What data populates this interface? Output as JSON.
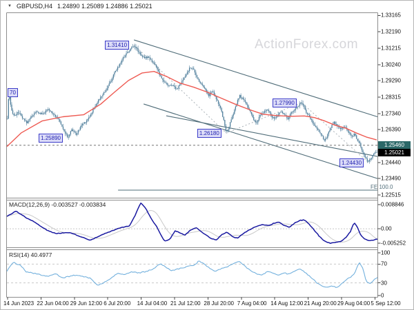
{
  "window": {
    "dropdown_icon": "▼",
    "symbol_period": "GBPUSD,H4",
    "ohlc": "1.24890 1.25089 1.24886 1.25021",
    "watermark": "ActionForex.com"
  },
  "colors": {
    "candle": "#4f7e9b",
    "ma_line": "#ee5a52",
    "trendline": "#4e6b77",
    "swing_dash": "#aab2b8",
    "level_dash": "#707070",
    "macd_line": "#1818a0",
    "signal_line": "#c8c8c8",
    "rsi_line": "#72b0dd",
    "rsi_level_dash": "#c8c8c8",
    "panel_border": "#8c8c8c",
    "level_badge_bg": "#2b6868",
    "last_badge_bg": "#000000",
    "flag_text": "#2222b0",
    "watermark": "#d6d6da"
  },
  "x_axis": {
    "labels": [
      "14 Jun 2023",
      "22 Jun 04:00",
      "29 Jun 12:00",
      "6 Jul 20:00",
      "14 Jul 04:00",
      "21 Jul 12:00",
      "28 Jul 20:00",
      "7 Aug 04:00",
      "14 Aug 12:00",
      "21 Aug 20:00",
      "29 Aug 04:00",
      "5 Sep 12:00"
    ]
  },
  "chart_data": [
    {
      "type": "candlestick",
      "title": "GBPUSD H4 price",
      "bars": 346,
      "y_axis": {
        "range": [
          1.2235,
          1.333
        ],
        "ticks": [
          "1.33165",
          "1.32190",
          "1.31215",
          "1.30240",
          "1.29290",
          "1.28315",
          "1.27340",
          "1.26390",
          "1.24440",
          "1.23490",
          "1.22515"
        ]
      },
      "levels": [
        {
          "label": "1.25460",
          "price": 1.2546,
          "style": "dashed_level"
        },
        {
          "label": "1.25021",
          "price": 1.25021,
          "style": "last_price"
        }
      ],
      "price_labels": [
        {
          "label": "1.31410",
          "f": 0.343,
          "price": 1.3141
        },
        {
          "label": "1.25890",
          "f": 0.164,
          "price": 1.2589
        },
        {
          "label": "1.26180",
          "f": 0.592,
          "price": 1.2618
        },
        {
          "label": "1.27990",
          "f": 0.795,
          "price": 1.2799
        },
        {
          "label": "1.24430",
          "f": 0.976,
          "price": 1.2443
        },
        {
          "label": "70",
          "f": 0.0,
          "price": 1.2861,
          "edge": true
        }
      ],
      "trendlines": [
        {
          "x": [
            0.343,
            1.0
          ],
          "p": [
            1.3171,
            1.2715
          ]
        },
        {
          "x": [
            0.369,
            1.0
          ],
          "p": [
            1.2791,
            1.2349
          ]
        },
        {
          "x": [
            0.43,
            1.0
          ],
          "p": [
            1.2721,
            1.248
          ]
        }
      ],
      "swing_dash_path": [
        [
          0.343,
          1.3141
        ],
        [
          0.592,
          1.2618
        ],
        [
          0.795,
          1.2799
        ],
        [
          0.976,
          1.2443
        ]
      ],
      "fib_expansion": {
        "label": "FE 100.0",
        "price": 1.228,
        "x_start": 0.3
      },
      "close_path": [
        [
          0,
          1.265
        ],
        [
          0.006,
          1.288
        ],
        [
          0.011,
          1.276
        ],
        [
          0.02,
          1.272
        ],
        [
          0.032,
          1.2745
        ],
        [
          0.043,
          1.27
        ],
        [
          0.054,
          1.268
        ],
        [
          0.067,
          1.272
        ],
        [
          0.08,
          1.2745
        ],
        [
          0.095,
          1.273
        ],
        [
          0.11,
          1.2758
        ],
        [
          0.125,
          1.2735
        ],
        [
          0.14,
          1.27
        ],
        [
          0.151,
          1.265
        ],
        [
          0.164,
          1.2589
        ],
        [
          0.175,
          1.264
        ],
        [
          0.188,
          1.261
        ],
        [
          0.201,
          1.2665
        ],
        [
          0.214,
          1.269
        ],
        [
          0.227,
          1.273
        ],
        [
          0.24,
          1.279
        ],
        [
          0.253,
          1.283
        ],
        [
          0.266,
          1.287
        ],
        [
          0.279,
          1.292
        ],
        [
          0.292,
          1.298
        ],
        [
          0.305,
          1.303
        ],
        [
          0.318,
          1.308
        ],
        [
          0.331,
          1.311
        ],
        [
          0.343,
          1.3141
        ],
        [
          0.35,
          1.312
        ],
        [
          0.359,
          1.309
        ],
        [
          0.371,
          1.306
        ],
        [
          0.382,
          1.3075
        ],
        [
          0.393,
          1.304
        ],
        [
          0.404,
          1.301
        ],
        [
          0.413,
          1.2955
        ],
        [
          0.425,
          1.292
        ],
        [
          0.436,
          1.29
        ],
        [
          0.447,
          1.2905
        ],
        [
          0.458,
          1.288
        ],
        [
          0.469,
          1.291
        ],
        [
          0.48,
          1.295
        ],
        [
          0.492,
          1.3
        ],
        [
          0.501,
          1.3008
        ],
        [
          0.51,
          1.296
        ],
        [
          0.521,
          1.292
        ],
        [
          0.533,
          1.289
        ],
        [
          0.544,
          1.284
        ],
        [
          0.555,
          1.287
        ],
        [
          0.566,
          1.282
        ],
        [
          0.577,
          1.276
        ],
        [
          0.587,
          1.268
        ],
        [
          0.592,
          1.2618
        ],
        [
          0.6,
          1.266
        ],
        [
          0.609,
          1.272
        ],
        [
          0.618,
          1.278
        ],
        [
          0.628,
          1.284
        ],
        [
          0.637,
          1.282
        ],
        [
          0.646,
          1.279
        ],
        [
          0.656,
          1.275
        ],
        [
          0.665,
          1.27
        ],
        [
          0.674,
          1.268
        ],
        [
          0.683,
          1.272
        ],
        [
          0.693,
          1.274
        ],
        [
          0.702,
          1.276
        ],
        [
          0.711,
          1.273
        ],
        [
          0.721,
          1.27
        ],
        [
          0.73,
          1.272
        ],
        [
          0.739,
          1.275
        ],
        [
          0.749,
          1.273
        ],
        [
          0.758,
          1.27
        ],
        [
          0.767,
          1.274
        ],
        [
          0.777,
          1.276
        ],
        [
          0.786,
          1.278
        ],
        [
          0.795,
          1.2799
        ],
        [
          0.804,
          1.276
        ],
        [
          0.814,
          1.272
        ],
        [
          0.823,
          1.269
        ],
        [
          0.832,
          1.266
        ],
        [
          0.842,
          1.263
        ],
        [
          0.851,
          1.26
        ],
        [
          0.858,
          1.257
        ],
        [
          0.866,
          1.261
        ],
        [
          0.873,
          1.265
        ],
        [
          0.883,
          1.268
        ],
        [
          0.892,
          1.266
        ],
        [
          0.901,
          1.264
        ],
        [
          0.911,
          1.266
        ],
        [
          0.92,
          1.263
        ],
        [
          0.929,
          1.26
        ],
        [
          0.938,
          1.261
        ],
        [
          0.946,
          1.258
        ],
        [
          0.953,
          1.255
        ],
        [
          0.961,
          1.25
        ],
        [
          0.968,
          1.247
        ],
        [
          0.976,
          1.2443
        ],
        [
          0.983,
          1.247
        ],
        [
          0.991,
          1.25
        ],
        [
          0.998,
          1.2502
        ]
      ],
      "ma_line": [
        [
          0,
          1.2538
        ],
        [
          0.039,
          1.262
        ],
        [
          0.095,
          1.269
        ],
        [
          0.151,
          1.2715
        ],
        [
          0.207,
          1.2727
        ],
        [
          0.253,
          1.279
        ],
        [
          0.29,
          1.286
        ],
        [
          0.328,
          1.293
        ],
        [
          0.365,
          1.2975
        ],
        [
          0.397,
          1.2984
        ],
        [
          0.43,
          1.2955
        ],
        [
          0.467,
          1.2915
        ],
        [
          0.505,
          1.289
        ],
        [
          0.542,
          1.286
        ],
        [
          0.579,
          1.2825
        ],
        [
          0.616,
          1.279
        ],
        [
          0.654,
          1.2758
        ],
        [
          0.691,
          1.273
        ],
        [
          0.728,
          1.2722
        ],
        [
          0.765,
          1.2718
        ],
        [
          0.803,
          1.272
        ],
        [
          0.83,
          1.271
        ],
        [
          0.858,
          1.269
        ],
        [
          0.886,
          1.2665
        ],
        [
          0.914,
          1.2648
        ],
        [
          0.942,
          1.262
        ],
        [
          0.97,
          1.2595
        ],
        [
          0.998,
          1.2578
        ]
      ]
    },
    {
      "type": "line",
      "title": "MACD",
      "label": "MACD(12,26,9) -0.003527 -0.003834",
      "y_axis": {
        "range": [
          -0.0062,
          0.0095
        ],
        "ticks": [
          "0.008846",
          "0.00",
          "-0.005252"
        ],
        "tick_values": [
          0.008846,
          0,
          -0.005252
        ]
      },
      "zero_line": 0,
      "points": [
        [
          0,
          0.0041
        ],
        [
          0.024,
          0.006
        ],
        [
          0.048,
          0.004
        ],
        [
          0.076,
          0.0022
        ],
        [
          0.108,
          -0.0005
        ],
        [
          0.132,
          -0.0016
        ],
        [
          0.169,
          -0.0012
        ],
        [
          0.188,
          -0.0021
        ],
        [
          0.225,
          -0.0038
        ],
        [
          0.263,
          -0.0017
        ],
        [
          0.305,
          0.0003
        ],
        [
          0.331,
          0.001
        ],
        [
          0.348,
          0.005
        ],
        [
          0.361,
          0.0088
        ],
        [
          0.374,
          0.007
        ],
        [
          0.389,
          0.0035
        ],
        [
          0.404,
          0.0008
        ],
        [
          0.425,
          -0.0042
        ],
        [
          0.439,
          -0.0036
        ],
        [
          0.454,
          -0.0006
        ],
        [
          0.467,
          -0.0013
        ],
        [
          0.48,
          -0.0022
        ],
        [
          0.495,
          -0.0004
        ],
        [
          0.51,
          0.0004
        ],
        [
          0.523,
          -0.0008
        ],
        [
          0.538,
          -0.0021
        ],
        [
          0.551,
          -0.0032
        ],
        [
          0.566,
          -0.0038
        ],
        [
          0.579,
          -0.002
        ],
        [
          0.594,
          -0.001
        ],
        [
          0.607,
          -0.0025
        ],
        [
          0.622,
          -0.0032
        ],
        [
          0.635,
          -0.0018
        ],
        [
          0.65,
          -0.0006
        ],
        [
          0.663,
          0.0002
        ],
        [
          0.678,
          0.001
        ],
        [
          0.691,
          0.0015
        ],
        [
          0.706,
          0.001
        ],
        [
          0.719,
          0.0018
        ],
        [
          0.734,
          0.0022
        ],
        [
          0.747,
          0.0012
        ],
        [
          0.762,
          0.0005
        ],
        [
          0.775,
          0.0018
        ],
        [
          0.79,
          0.0028
        ],
        [
          0.803,
          0.003
        ],
        [
          0.816,
          0.0015
        ],
        [
          0.83,
          -0.0005
        ],
        [
          0.843,
          -0.0025
        ],
        [
          0.858,
          -0.0042
        ],
        [
          0.873,
          -0.0048
        ],
        [
          0.886,
          -0.0045
        ],
        [
          0.901,
          -0.0042
        ],
        [
          0.914,
          -0.003
        ],
        [
          0.927,
          -0.001
        ],
        [
          0.937,
          0.0022
        ],
        [
          0.946,
          0.0005
        ],
        [
          0.955,
          -0.0022
        ],
        [
          0.966,
          -0.0035
        ],
        [
          0.979,
          -0.004
        ],
        [
          0.989,
          -0.0038
        ],
        [
          0.998,
          -0.0035
        ]
      ]
    },
    {
      "type": "line",
      "title": "RSI",
      "label": "RSI(14) 40.4977",
      "y_axis": {
        "range": [
          0,
          100
        ],
        "ticks": [
          "100",
          "70",
          "30",
          "0"
        ],
        "tick_values": [
          100,
          70,
          30,
          0
        ]
      },
      "levels": [
        70,
        30
      ],
      "points": [
        [
          0,
          55
        ],
        [
          0.017,
          74
        ],
        [
          0.039,
          66
        ],
        [
          0.052,
          54
        ],
        [
          0.082,
          49
        ],
        [
          0.108,
          44
        ],
        [
          0.132,
          49
        ],
        [
          0.151,
          41
        ],
        [
          0.188,
          47
        ],
        [
          0.225,
          40
        ],
        [
          0.244,
          25
        ],
        [
          0.257,
          29
        ],
        [
          0.281,
          40
        ],
        [
          0.3,
          51
        ],
        [
          0.318,
          47
        ],
        [
          0.337,
          54
        ],
        [
          0.356,
          51
        ],
        [
          0.374,
          54
        ],
        [
          0.393,
          59
        ],
        [
          0.415,
          71
        ],
        [
          0.443,
          56
        ],
        [
          0.473,
          62
        ],
        [
          0.51,
          69
        ],
        [
          0.518,
          78
        ],
        [
          0.538,
          66
        ],
        [
          0.561,
          55
        ],
        [
          0.579,
          60
        ],
        [
          0.598,
          65
        ],
        [
          0.616,
          72
        ],
        [
          0.626,
          76
        ],
        [
          0.639,
          68
        ],
        [
          0.654,
          58
        ],
        [
          0.672,
          50
        ],
        [
          0.687,
          46
        ],
        [
          0.706,
          55
        ],
        [
          0.719,
          50
        ],
        [
          0.734,
          46
        ],
        [
          0.747,
          52
        ],
        [
          0.762,
          48
        ],
        [
          0.777,
          55
        ],
        [
          0.79,
          60
        ],
        [
          0.808,
          50
        ],
        [
          0.821,
          42
        ],
        [
          0.836,
          30
        ],
        [
          0.849,
          24
        ],
        [
          0.862,
          20
        ],
        [
          0.877,
          24
        ],
        [
          0.89,
          20
        ],
        [
          0.901,
          26
        ],
        [
          0.914,
          36
        ],
        [
          0.927,
          42
        ],
        [
          0.938,
          50
        ],
        [
          0.951,
          75
        ],
        [
          0.961,
          60
        ],
        [
          0.97,
          32
        ],
        [
          0.981,
          28
        ],
        [
          0.991,
          38
        ],
        [
          0.998,
          40.5
        ]
      ]
    }
  ]
}
